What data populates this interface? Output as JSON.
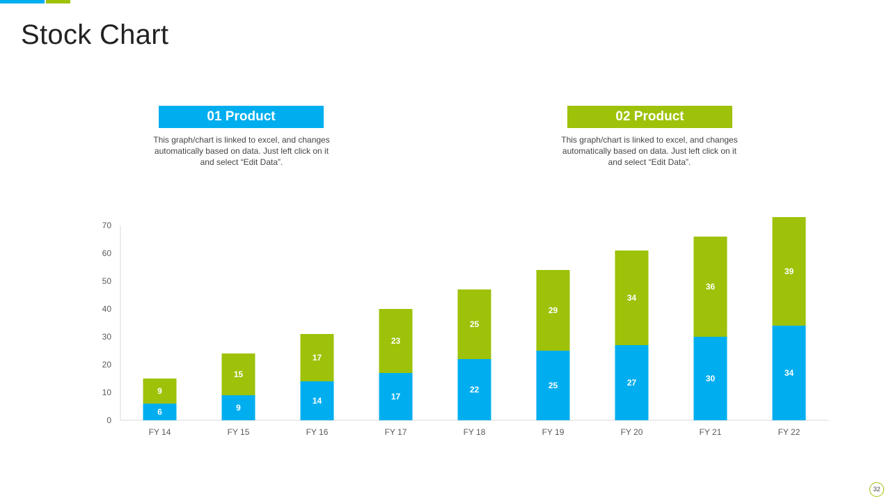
{
  "colors": {
    "blue": "#00AEEF",
    "green": "#9DC209"
  },
  "title": "Stock Chart",
  "products": [
    {
      "label": "01 Product",
      "description": "This graph/chart is linked to excel, and changes automatically based on data. Just left click on it and select “Edit Data”."
    },
    {
      "label": "02 Product",
      "description": "This graph/chart is linked to excel, and changes automatically based on data. Just left click on it and select “Edit Data”."
    }
  ],
  "chart_data": {
    "type": "bar",
    "stacked": true,
    "categories": [
      "FY 14",
      "FY 15",
      "FY 16",
      "FY 17",
      "FY 18",
      "FY 19",
      "FY 20",
      "FY 21",
      "FY 22"
    ],
    "series": [
      {
        "name": "01 Product",
        "color": "#00AEEF",
        "values": [
          6,
          9,
          14,
          17,
          22,
          25,
          27,
          30,
          34
        ]
      },
      {
        "name": "02 Product",
        "color": "#9DC209",
        "values": [
          9,
          15,
          17,
          23,
          25,
          29,
          34,
          36,
          39
        ]
      }
    ],
    "y_ticks": [
      0,
      10,
      20,
      30,
      40,
      50,
      60,
      70
    ],
    "ylim": [
      0,
      70
    ],
    "title": "",
    "xlabel": "",
    "ylabel": "",
    "grid": false
  },
  "page_number": "32"
}
